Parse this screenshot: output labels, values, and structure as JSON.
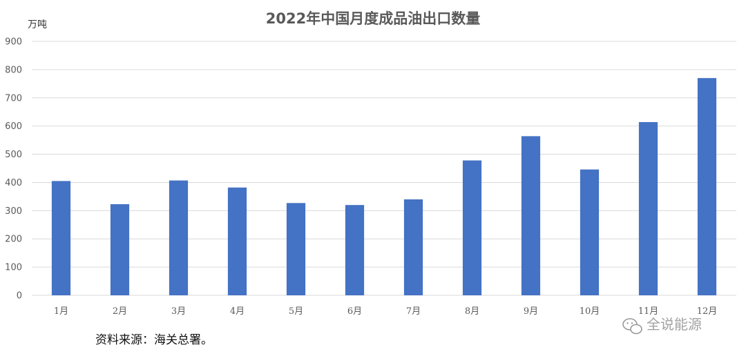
{
  "chart_data": {
    "type": "bar",
    "title": "2022年中国月度成品油出口数量",
    "unit_label": "万吨",
    "categories": [
      "1月",
      "2月",
      "3月",
      "4月",
      "5月",
      "6月",
      "7月",
      "8月",
      "9月",
      "10月",
      "11月",
      "12月"
    ],
    "values": [
      405,
      323,
      407,
      382,
      327,
      320,
      340,
      478,
      564,
      446,
      614,
      770
    ],
    "ylim": [
      0,
      900
    ],
    "yticks": [
      0,
      100,
      200,
      300,
      400,
      500,
      600,
      700,
      800,
      900
    ],
    "grid": true,
    "bar_color": "#4472c4"
  },
  "source_note": "资料来源：海关总署。",
  "watermark": {
    "label": "全说能源",
    "icon": "wechat-icon"
  }
}
